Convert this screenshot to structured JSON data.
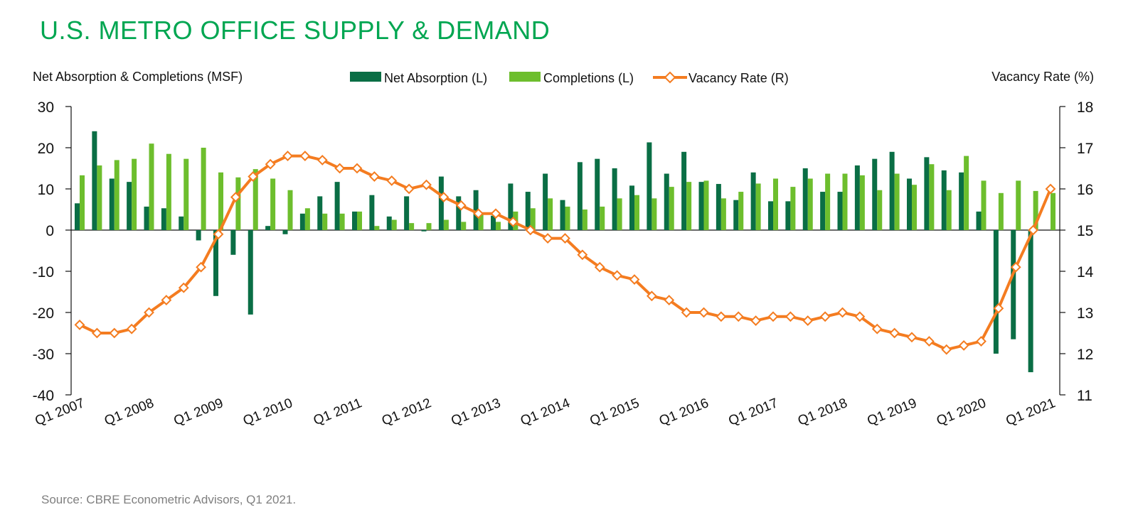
{
  "title": "U.S. METRO OFFICE SUPPLY & DEMAND",
  "source": "Source: CBRE Econometric Advisors, Q1 2021.",
  "colors": {
    "title": "#00A651",
    "net_absorption": "#0A6E45",
    "completions": "#6DBE2D",
    "vacancy": "#F47C20"
  },
  "chart_data": {
    "type": "bar+line",
    "left_axis_label": "Net Absorption & Completions (MSF)",
    "right_axis_label": "Vacancy Rate (%)",
    "legend": [
      "Net Absorption (L)",
      "Completions (L)",
      "Vacancy Rate (R)"
    ],
    "legend_position": "top-center",
    "y_left": {
      "min": -40,
      "max": 30,
      "ticks": [
        30,
        20,
        10,
        0,
        -10,
        -20,
        -30,
        -40
      ]
    },
    "y_right": {
      "min": 11,
      "max": 18,
      "ticks": [
        18,
        17,
        16,
        15,
        14,
        13,
        12,
        11
      ]
    },
    "x_tick_labels": [
      "Q1 2007",
      "Q1 2008",
      "Q1 2009",
      "Q1 2010",
      "Q1 2011",
      "Q1 2012",
      "Q1 2013",
      "Q1 2014",
      "Q1 2015",
      "Q1 2016",
      "Q1 2017",
      "Q1 2018",
      "Q1 2019",
      "Q1 2020",
      "Q1 2021"
    ],
    "quarters": 57,
    "series": [
      {
        "name": "Net Absorption (L)",
        "axis": "left",
        "type": "bar",
        "values": [
          6.5,
          24,
          12.5,
          11.7,
          5.7,
          5.3,
          3.3,
          -2.5,
          -16,
          -6,
          -20.5,
          1,
          -1,
          4,
          8.2,
          11.7,
          4.5,
          8.5,
          3.3,
          8.2,
          -0.3,
          13,
          8.2,
          9.7,
          3.5,
          11.3,
          9.3,
          13.7,
          7.3,
          16.5,
          17.3,
          15,
          10.8,
          21.3,
          13.7,
          19,
          11.7,
          11.2,
          7.3,
          14,
          7,
          7,
          15,
          9.3,
          9.3,
          15.7,
          17.3,
          19,
          12.5,
          17.7,
          14.5,
          14,
          4.5,
          -30,
          -26.5,
          -34.5,
          0
        ]
      },
      {
        "name": "Completions (L)",
        "axis": "left",
        "type": "bar",
        "values": [
          13.3,
          15.7,
          17,
          17.3,
          21,
          18.5,
          17.3,
          20,
          14,
          12.8,
          14.8,
          12.5,
          9.7,
          5.3,
          4,
          4,
          4.5,
          1,
          2.5,
          1.7,
          1.7,
          2.5,
          2,
          4,
          2,
          4.5,
          5.3,
          7.7,
          5.7,
          5,
          5.7,
          7.7,
          8.5,
          7.7,
          10.5,
          11.7,
          12,
          7.7,
          9.3,
          11.3,
          12.5,
          10.5,
          12.5,
          13.7,
          13.7,
          13.3,
          9.7,
          13.7,
          11,
          16,
          9.7,
          18,
          12,
          9,
          12,
          9.5,
          9
        ]
      },
      {
        "name": "Vacancy Rate (R)",
        "axis": "right",
        "type": "line",
        "values": [
          12.7,
          12.5,
          12.5,
          12.6,
          13.0,
          13.3,
          13.6,
          14.1,
          14.9,
          15.8,
          16.3,
          16.6,
          16.8,
          16.8,
          16.7,
          16.5,
          16.5,
          16.3,
          16.2,
          16.0,
          16.1,
          15.8,
          15.6,
          15.4,
          15.4,
          15.2,
          15.0,
          14.8,
          14.8,
          14.4,
          14.1,
          13.9,
          13.8,
          13.4,
          13.3,
          13.0,
          13.0,
          12.9,
          12.9,
          12.8,
          12.9,
          12.9,
          12.8,
          12.9,
          13.0,
          12.9,
          12.6,
          12.5,
          12.4,
          12.3,
          12.1,
          12.2,
          12.3,
          13.1,
          14.1,
          15.0,
          16.0
        ]
      }
    ]
  }
}
